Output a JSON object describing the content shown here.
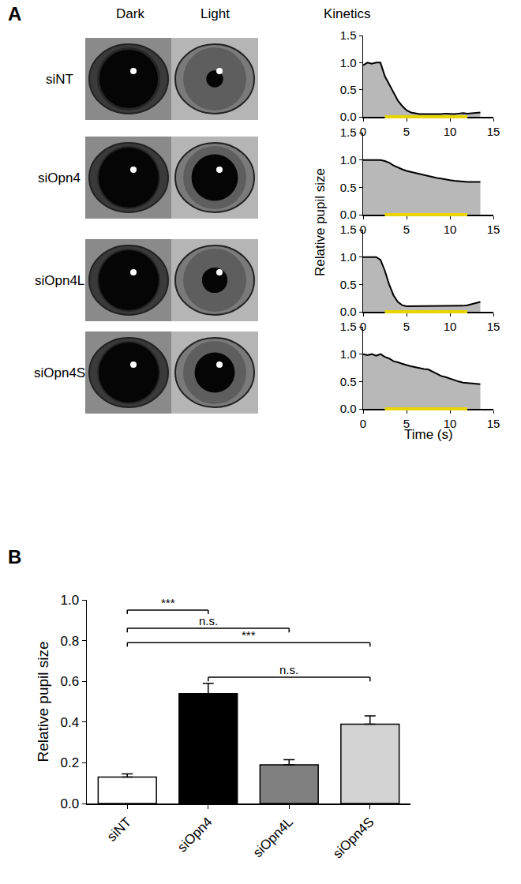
{
  "figure": {
    "panel_labels": [
      "A",
      "B"
    ],
    "column_headers": [
      "Dark",
      "Light",
      "Kinetics"
    ],
    "kinetics_y_label": "Relative pupil size",
    "kinetics_x_label": "Time (s)"
  },
  "chart_data": [
    {
      "type": "area",
      "row_label": "siNT",
      "color": "#000000",
      "grid": false,
      "x": [
        0,
        0.5,
        1,
        1.5,
        2,
        2.5,
        3,
        3.5,
        4,
        4.5,
        5,
        5.5,
        6,
        6.5,
        7,
        7.5,
        8,
        8.5,
        9,
        9.5,
        10,
        10.5,
        11,
        11.5,
        12,
        12.5,
        13,
        13.5
      ],
      "values": [
        0.95,
        1.0,
        0.98,
        1.0,
        1.0,
        0.75,
        0.6,
        0.45,
        0.3,
        0.2,
        0.12,
        0.08,
        0.06,
        0.05,
        0.05,
        0.05,
        0.04,
        0.05,
        0.05,
        0.06,
        0.05,
        0.05,
        0.06,
        0.07,
        0.06,
        0.07,
        0.08,
        0.08
      ],
      "light_interval": [
        2.5,
        12
      ],
      "xlim": [
        0,
        15
      ],
      "xticks": [
        0,
        5,
        10,
        15
      ],
      "ylim": [
        0,
        1.5
      ],
      "yticks": [
        {
          "value": 0,
          "label": "0.0"
        },
        {
          "value": 0.5,
          "label": "0.5"
        },
        {
          "value": 1,
          "label": "1.0"
        },
        {
          "value": 1.5,
          "label": "1.5"
        }
      ]
    },
    {
      "type": "area",
      "row_label": "siOpn4",
      "color": "#000000",
      "grid": false,
      "x": [
        0,
        0.5,
        1,
        1.5,
        2,
        2.5,
        3,
        3.5,
        4,
        4.5,
        5,
        5.5,
        6,
        6.5,
        7,
        7.5,
        8,
        8.5,
        9,
        9.5,
        10,
        10.5,
        11,
        11.5,
        12,
        12.5,
        13,
        13.5
      ],
      "values": [
        1.0,
        1.0,
        1.0,
        1.0,
        1.0,
        0.98,
        0.95,
        0.9,
        0.86,
        0.83,
        0.8,
        0.78,
        0.76,
        0.74,
        0.72,
        0.7,
        0.68,
        0.67,
        0.66,
        0.64,
        0.63,
        0.62,
        0.61,
        0.6,
        0.6,
        0.6,
        0.6,
        0.6
      ],
      "light_interval": [
        2.5,
        12
      ],
      "xlim": [
        0,
        15
      ],
      "xticks": [
        0,
        5,
        10,
        15
      ],
      "ylim": [
        0,
        1.5
      ],
      "yticks": [
        {
          "value": 0,
          "label": "0.0"
        },
        {
          "value": 0.5,
          "label": "0.5"
        },
        {
          "value": 1,
          "label": "1.0"
        },
        {
          "value": 1.5,
          "label": "1.5"
        }
      ]
    },
    {
      "type": "area",
      "row_label": "siOpn4L",
      "color": "#000000",
      "grid": false,
      "x": [
        0,
        0.5,
        1,
        1.5,
        2,
        2.5,
        3,
        3.5,
        4,
        4.5,
        5,
        5.5,
        6,
        6.5,
        7,
        7.5,
        8,
        8.5,
        9,
        9.5,
        10,
        10.5,
        11,
        11.5,
        12,
        12.5,
        13,
        13.5
      ],
      "values": [
        1.0,
        1.0,
        1.0,
        1.0,
        0.95,
        0.75,
        0.5,
        0.3,
        0.18,
        0.12,
        0.1,
        0.1,
        0.1,
        0.1,
        0.1,
        0.1,
        0.1,
        0.1,
        0.1,
        0.1,
        0.1,
        0.1,
        0.1,
        0.11,
        0.12,
        0.14,
        0.16,
        0.18
      ],
      "light_interval": [
        2.5,
        12
      ],
      "xlim": [
        0,
        15
      ],
      "xticks": [
        0,
        5,
        10,
        15
      ],
      "ylim": [
        0,
        1.5
      ],
      "yticks": [
        {
          "value": 0,
          "label": "0.0"
        },
        {
          "value": 0.5,
          "label": "0.5"
        },
        {
          "value": 1,
          "label": "1.0"
        },
        {
          "value": 1.5,
          "label": "1.5"
        }
      ]
    },
    {
      "type": "area",
      "row_label": "siOpn4S",
      "color": "#000000",
      "grid": false,
      "x": [
        0,
        0.5,
        1,
        1.5,
        2,
        2.5,
        3,
        3.5,
        4,
        4.5,
        5,
        5.5,
        6,
        6.5,
        7,
        7.5,
        8,
        8.5,
        9,
        9.5,
        10,
        10.5,
        11,
        11.5,
        12,
        12.5,
        13,
        13.5
      ],
      "values": [
        1.0,
        0.98,
        1.0,
        0.97,
        1.0,
        0.95,
        0.92,
        0.87,
        0.85,
        0.82,
        0.8,
        0.78,
        0.76,
        0.75,
        0.73,
        0.72,
        0.68,
        0.65,
        0.6,
        0.58,
        0.55,
        0.52,
        0.5,
        0.48,
        0.47,
        0.46,
        0.45,
        0.45
      ],
      "light_interval": [
        2.5,
        12
      ],
      "xlim": [
        0,
        15
      ],
      "xticks": [
        0,
        5,
        10,
        15
      ],
      "ylim": [
        0,
        1.5
      ],
      "yticks": [
        {
          "value": 0,
          "label": "0.0"
        },
        {
          "value": 0.5,
          "label": "0.5"
        },
        {
          "value": 1,
          "label": "1.0"
        },
        {
          "value": 1.5,
          "label": "1.5"
        }
      ]
    },
    {
      "type": "bar",
      "y_label": "Relative pupil size",
      "grid": false,
      "categories": [
        "siNT",
        "siOpn4",
        "siOpn4L",
        "siOpn4S"
      ],
      "values": [
        0.13,
        0.54,
        0.19,
        0.39
      ],
      "errors": [
        0.015,
        0.05,
        0.025,
        0.04
      ],
      "colors": [
        "#ffffff",
        "#000000",
        "#808080",
        "#d3d3d3"
      ],
      "ylim": [
        0,
        1.0
      ],
      "yticks": [
        {
          "value": 0,
          "label": "0.0"
        },
        {
          "value": 0.2,
          "label": "0.2"
        },
        {
          "value": 0.4,
          "label": "0.4"
        },
        {
          "value": 0.6,
          "label": "0.6"
        },
        {
          "value": 0.8,
          "label": "0.8"
        },
        {
          "value": 1.0,
          "label": "1.0"
        }
      ],
      "comparisons": [
        {
          "from": "siNT",
          "to": "siOpn4",
          "label": "***",
          "y": 0.95
        },
        {
          "from": "siNT",
          "to": "siOpn4L",
          "label": "n.s.",
          "y": 0.86
        },
        {
          "from": "siNT",
          "to": "siOpn4S",
          "label": "***",
          "y": 0.79
        },
        {
          "from": "siOpn4",
          "to": "siOpn4S",
          "label": "n.s.",
          "y": 0.62
        }
      ]
    }
  ]
}
